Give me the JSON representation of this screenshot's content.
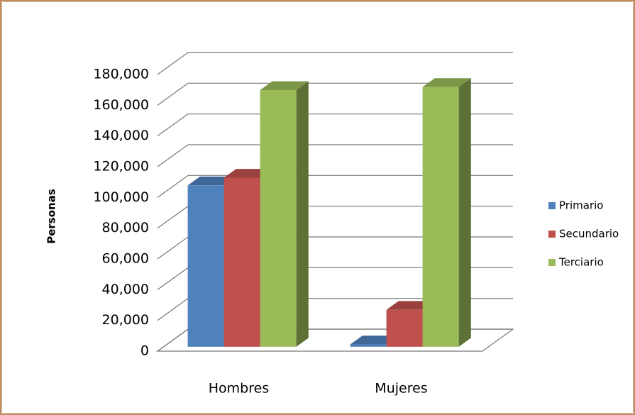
{
  "chart_data": {
    "type": "bar3d",
    "y_label": "Personas",
    "categories": [
      "Hombres",
      "Mujeres"
    ],
    "series": [
      {
        "name": "Primario",
        "color": "#4f81bd",
        "values": [
          105000,
          1500
        ]
      },
      {
        "name": "Secundario",
        "color": "#c0504d",
        "values": [
          110000,
          24000
        ]
      },
      {
        "name": "Terciario",
        "color": "#9bbb59",
        "values": [
          167000,
          169000
        ]
      }
    ],
    "ylim": [
      0,
      180000
    ],
    "yticks": [
      {
        "value": 0,
        "label": "0"
      },
      {
        "value": 20000,
        "label": "20,000"
      },
      {
        "value": 40000,
        "label": "40,000"
      },
      {
        "value": 60000,
        "label": "60,000"
      },
      {
        "value": 80000,
        "label": "80,000"
      },
      {
        "value": 100000,
        "label": "100,000"
      },
      {
        "value": 120000,
        "label": "120,000"
      },
      {
        "value": 140000,
        "label": "140,000"
      },
      {
        "value": 160000,
        "label": "160,000"
      },
      {
        "value": 180000,
        "label": "180,000"
      }
    ],
    "grid": true,
    "legend": "right"
  }
}
